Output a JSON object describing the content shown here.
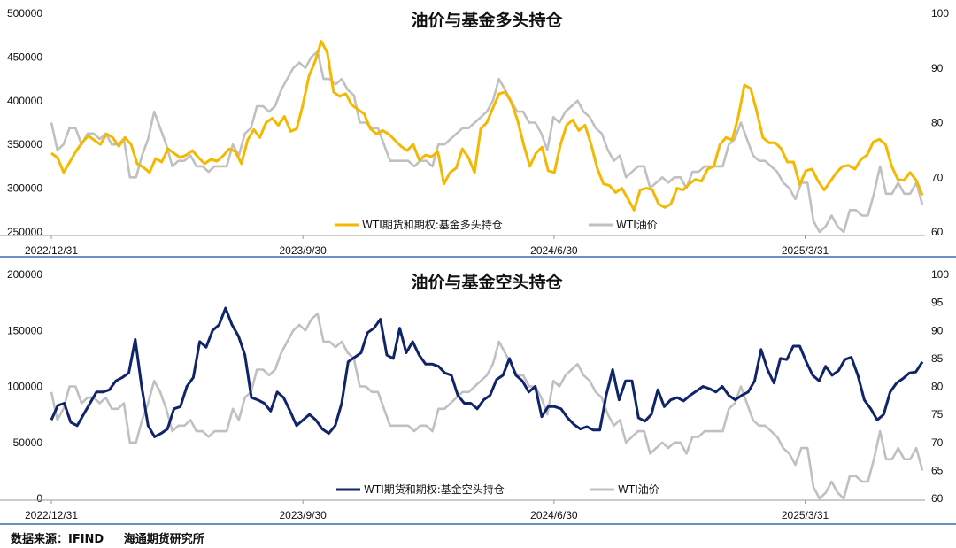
{
  "source": {
    "label": "数据来源：IFIND",
    "org": "海通期货研究所"
  },
  "colors": {
    "long": "#f5b800",
    "short": "#10246a",
    "wti": "#c0c0c0",
    "divider": "#3d6bb3"
  },
  "chart_data": [
    {
      "type": "line",
      "title": "油价与基金多头持仓",
      "x_ticks": [
        "2022/12/31",
        "2023/9/30",
        "2024/6/30",
        "2025/3/31"
      ],
      "left_axis": {
        "ylim": [
          250000,
          500000
        ],
        "ticks": [
          500000,
          450000,
          400000,
          350000,
          300000,
          250000
        ]
      },
      "right_axis": {
        "ylim": [
          60,
          100
        ],
        "ticks": [
          100,
          90,
          80,
          70,
          60
        ]
      },
      "legend": "bottom",
      "series": [
        {
          "name": "WTI期货和期权:基金多头持仓",
          "axis": "left",
          "color": "#f5b800",
          "values": [
            340000,
            335000,
            318000,
            330000,
            342000,
            352000,
            360000,
            355000,
            350000,
            362000,
            358000,
            348000,
            358000,
            350000,
            328000,
            324000,
            318000,
            334000,
            330000,
            345000,
            340000,
            335000,
            338000,
            343000,
            335000,
            328000,
            333000,
            331000,
            337000,
            345000,
            342000,
            328000,
            355000,
            367000,
            358000,
            375000,
            380000,
            372000,
            382000,
            365000,
            368000,
            395000,
            428000,
            445000,
            468000,
            455000,
            410000,
            405000,
            408000,
            395000,
            390000,
            385000,
            368000,
            362000,
            366000,
            362000,
            355000,
            348000,
            343000,
            350000,
            332000,
            338000,
            336000,
            342000,
            305000,
            318000,
            323000,
            345000,
            335000,
            318000,
            368000,
            375000,
            392000,
            408000,
            410000,
            398000,
            378000,
            350000,
            325000,
            340000,
            347000,
            320000,
            318000,
            350000,
            372000,
            378000,
            366000,
            372000,
            350000,
            323000,
            305000,
            303000,
            295000,
            300000,
            288000,
            275000,
            298000,
            300000,
            298000,
            282000,
            278000,
            282000,
            300000,
            298000,
            305000,
            310000,
            308000,
            322000,
            325000,
            350000,
            358000,
            355000,
            382000,
            418000,
            414000,
            388000,
            358000,
            352000,
            352000,
            345000,
            330000,
            330000,
            304000,
            320000,
            322000,
            308000,
            298000,
            308000,
            318000,
            325000,
            326000,
            322000,
            333000,
            338000,
            353000,
            356000,
            350000,
            325000,
            310000,
            309000,
            318000,
            309000,
            292000
          ]
        },
        {
          "name": "WTI油价",
          "axis": "right",
          "color": "#c0c0c0",
          "values": [
            80,
            75,
            76,
            79,
            79,
            76,
            78,
            78,
            77,
            78,
            76,
            76,
            77,
            70,
            70,
            74,
            77,
            82,
            79,
            76,
            72,
            73,
            73,
            74,
            72,
            72,
            71,
            72,
            72,
            72,
            76,
            74,
            78,
            79,
            83,
            83,
            82,
            83,
            86,
            88,
            90,
            91,
            90,
            92,
            93,
            88,
            88,
            87,
            88,
            86,
            85,
            80,
            80,
            79,
            79,
            76,
            73,
            73,
            73,
            73,
            72,
            73,
            73,
            72,
            76,
            76,
            77,
            78,
            79,
            79,
            80,
            81,
            82,
            84,
            88,
            86,
            84,
            82,
            82,
            80,
            80,
            78,
            75,
            81,
            80,
            82,
            83,
            84,
            82,
            81,
            79,
            78,
            75,
            73,
            74,
            70,
            71,
            72,
            72,
            68,
            69,
            70,
            69,
            70,
            70,
            68,
            71,
            71,
            72,
            72,
            72,
            72,
            76,
            77,
            80,
            77,
            74,
            73,
            73,
            72,
            71,
            69,
            68,
            66,
            69,
            69,
            62,
            60,
            61,
            63,
            61,
            60,
            64,
            64,
            63,
            63,
            67,
            72,
            67,
            67,
            69,
            67,
            67,
            69,
            65
          ]
        }
      ]
    },
    {
      "type": "line",
      "title": "油价与基金空头持仓",
      "x_ticks": [
        "2022/12/31",
        "2023/9/30",
        "2024/6/30",
        "2025/3/31"
      ],
      "left_axis": {
        "ylim": [
          0,
          200000
        ],
        "ticks": [
          200000,
          150000,
          100000,
          50000,
          0
        ]
      },
      "right_axis": {
        "ylim": [
          60,
          100
        ],
        "ticks": [
          100,
          95,
          90,
          85,
          80,
          75,
          70,
          65,
          60
        ]
      },
      "legend": "bottom",
      "series": [
        {
          "name": "WTI期货和期权:基金空头持仓",
          "axis": "left",
          "color": "#10246a",
          "values": [
            70000,
            83000,
            85000,
            68000,
            65000,
            75000,
            85000,
            95000,
            95000,
            97000,
            105000,
            108000,
            112000,
            142000,
            100000,
            65000,
            55000,
            58000,
            62000,
            80000,
            82000,
            100000,
            108000,
            140000,
            135000,
            150000,
            155000,
            170000,
            155000,
            145000,
            128000,
            90000,
            88000,
            85000,
            78000,
            95000,
            90000,
            78000,
            65000,
            70000,
            75000,
            70000,
            62000,
            58000,
            65000,
            85000,
            122000,
            126000,
            130000,
            148000,
            152000,
            160000,
            128000,
            125000,
            152000,
            130000,
            140000,
            128000,
            120000,
            120000,
            118000,
            112000,
            110000,
            92000,
            85000,
            85000,
            80000,
            88000,
            92000,
            106000,
            110000,
            125000,
            110000,
            105000,
            95000,
            100000,
            73000,
            82000,
            82000,
            80000,
            72000,
            66000,
            62000,
            64000,
            61000,
            61000,
            92000,
            115000,
            88000,
            105000,
            105000,
            72000,
            69000,
            75000,
            97000,
            82000,
            88000,
            90000,
            87000,
            92000,
            96000,
            100000,
            98000,
            95000,
            100000,
            92000,
            88000,
            92000,
            95000,
            105000,
            133000,
            115000,
            103000,
            125000,
            124000,
            136000,
            136000,
            122000,
            110000,
            105000,
            118000,
            110000,
            114000,
            124000,
            126000,
            110000,
            88000,
            80000,
            70000,
            75000,
            95000,
            103000,
            107000,
            112000,
            113000,
            122000
          ]
        },
        {
          "name": "WTI油价",
          "axis": "right",
          "color": "#c0c0c0",
          "values": [
            79,
            74,
            76,
            80,
            80,
            77,
            78,
            78,
            77,
            78,
            76,
            76,
            77,
            70,
            70,
            74,
            77,
            81,
            79,
            76,
            72,
            73,
            73,
            74,
            72,
            72,
            71,
            72,
            72,
            72,
            76,
            74,
            78,
            79,
            83,
            83,
            82,
            83,
            86,
            88,
            90,
            91,
            90,
            92,
            93,
            88,
            88,
            87,
            88,
            86,
            85,
            80,
            80,
            79,
            79,
            76,
            73,
            73,
            73,
            73,
            72,
            73,
            73,
            72,
            76,
            76,
            77,
            78,
            79,
            79,
            80,
            81,
            82,
            84,
            88,
            86,
            84,
            82,
            82,
            80,
            80,
            78,
            75,
            81,
            80,
            82,
            83,
            84,
            82,
            81,
            79,
            78,
            75,
            73,
            74,
            70,
            71,
            72,
            72,
            68,
            69,
            70,
            69,
            70,
            70,
            68,
            71,
            71,
            72,
            72,
            72,
            72,
            76,
            77,
            80,
            77,
            74,
            73,
            73,
            72,
            71,
            69,
            68,
            66,
            69,
            69,
            62,
            60,
            61,
            63,
            61,
            60,
            64,
            64,
            63,
            63,
            67,
            72,
            67,
            67,
            69,
            67,
            67,
            69,
            65
          ]
        }
      ]
    }
  ]
}
